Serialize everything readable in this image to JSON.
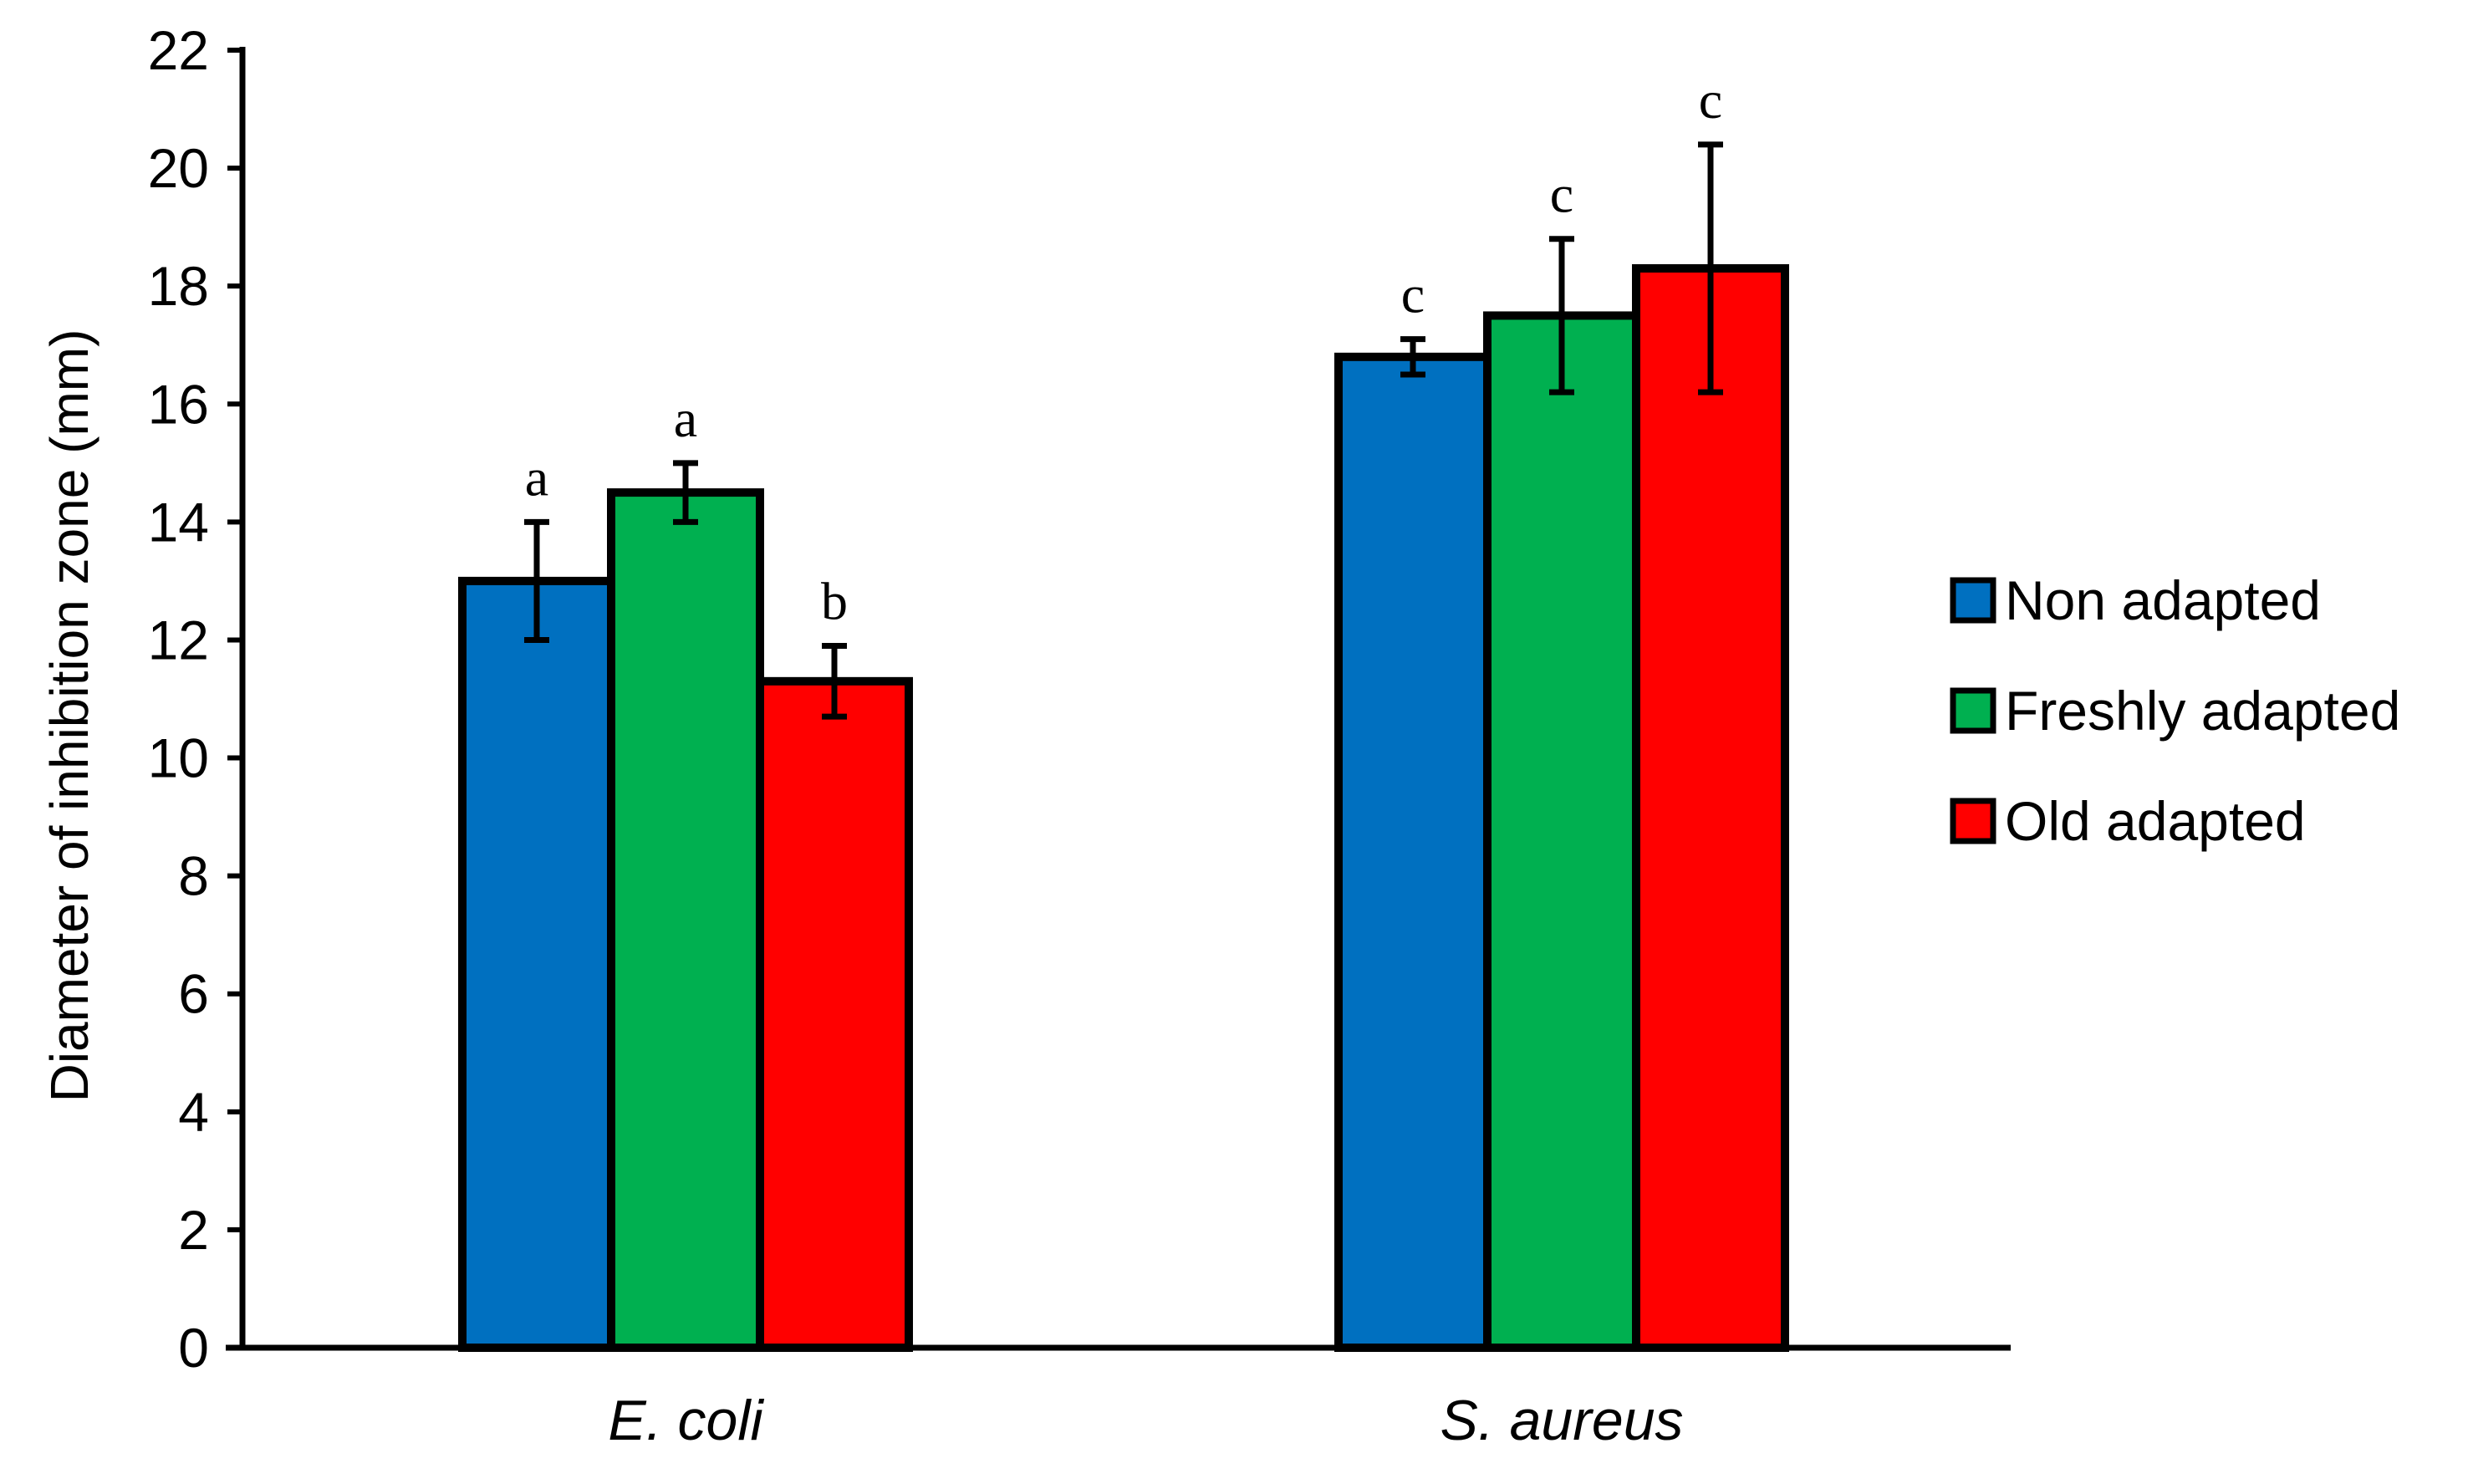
{
  "chart_data": {
    "type": "bar",
    "ylabel": "Diameter of inhibition zone (mm)",
    "xlabel": "",
    "ylim": [
      0,
      22
    ],
    "yticks": [
      0,
      2,
      4,
      6,
      8,
      10,
      12,
      14,
      16,
      18,
      20,
      22
    ],
    "categories": [
      "E. coli",
      "S. aureus"
    ],
    "series": [
      {
        "name": "Non adapted",
        "color": "#0070C0",
        "values": [
          13.0,
          16.8
        ],
        "errors": [
          1.0,
          0.3
        ],
        "letters": [
          "a",
          "c"
        ]
      },
      {
        "name": "Freshly adapted",
        "color": "#00B050",
        "values": [
          14.5,
          17.5
        ],
        "errors": [
          0.5,
          1.3
        ],
        "letters": [
          "a",
          "c"
        ]
      },
      {
        "name": "Old adapted",
        "color": "#FF0000",
        "values": [
          11.3,
          18.3
        ],
        "errors": [
          0.6,
          2.1
        ],
        "letters": [
          "b",
          "c"
        ]
      }
    ],
    "legend_position": "right",
    "grid": false
  }
}
